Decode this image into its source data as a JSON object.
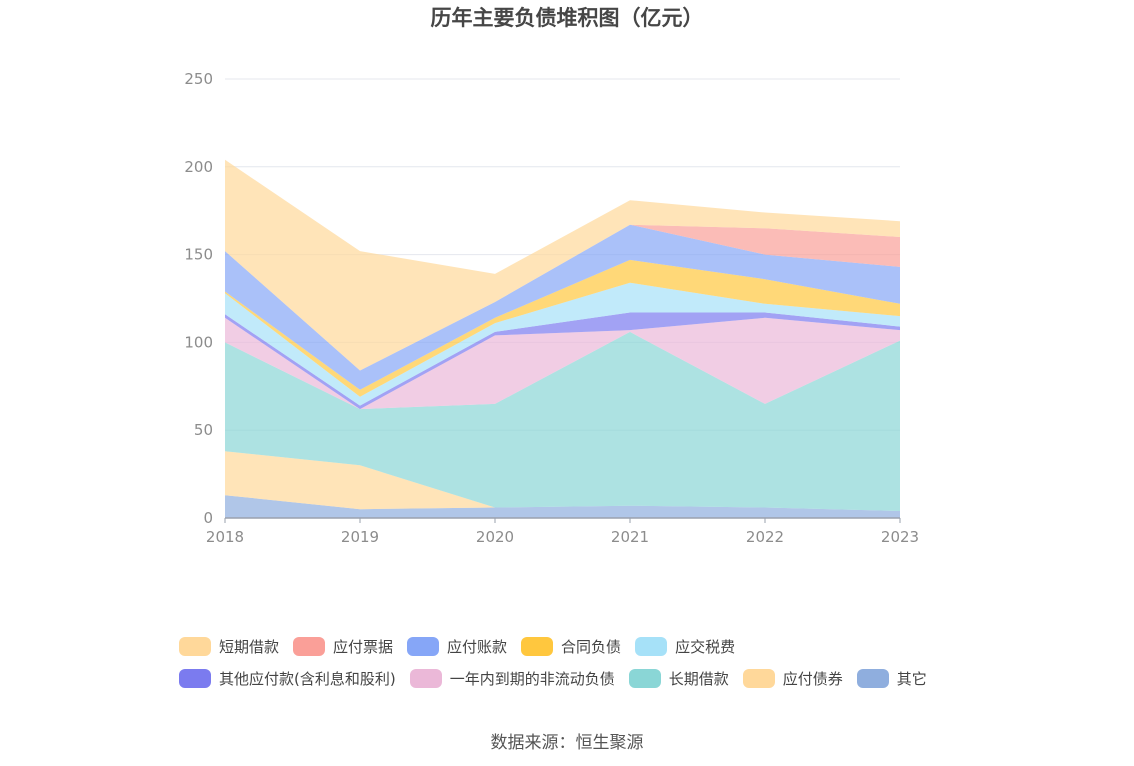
{
  "chart_data": {
    "type": "area",
    "stacked": true,
    "title": "历年主要负债堆积图（亿元）",
    "x": [
      "2018",
      "2019",
      "2020",
      "2021",
      "2022",
      "2023"
    ],
    "yticks": [
      "0",
      "50",
      "100",
      "150",
      "200",
      "250"
    ],
    "ylim": [
      0,
      250
    ],
    "grid": true,
    "legend_position": "bottom",
    "series": [
      {
        "name": "其它",
        "color": "#8faede",
        "values": [
          13,
          5,
          6,
          7,
          6,
          4
        ]
      },
      {
        "name": "应付债券",
        "color": "#ffd89a",
        "values": [
          25,
          25,
          0,
          0,
          0,
          0
        ]
      },
      {
        "name": "长期借款",
        "color": "#8ad6d6",
        "values": [
          62,
          32,
          59,
          99,
          59,
          97
        ]
      },
      {
        "name": "一年内到期的非流动负债",
        "color": "#ebb8d8",
        "values": [
          14,
          0,
          39,
          1,
          49,
          6
        ]
      },
      {
        "name": "其他应付款(含利息和股利)",
        "color": "#7b7bef",
        "values": [
          2,
          2,
          2,
          10,
          3,
          2
        ]
      },
      {
        "name": "应交税费",
        "color": "#a6e1f8",
        "values": [
          12,
          5,
          5,
          17,
          5,
          6
        ]
      },
      {
        "name": "合同负债",
        "color": "#ffc73e",
        "values": [
          1,
          4,
          3,
          13,
          14,
          7
        ]
      },
      {
        "name": "应付账款",
        "color": "#86a6f7",
        "values": [
          23,
          11,
          9,
          20,
          14,
          21
        ]
      },
      {
        "name": "应付票据",
        "color": "#fa9f98",
        "values": [
          0,
          0,
          0,
          0,
          15,
          17
        ]
      },
      {
        "name": "短期借款",
        "color": "#ffd89a",
        "values": [
          52,
          68,
          16,
          14,
          9,
          9
        ]
      }
    ]
  },
  "legend": {
    "row1": [
      {
        "label": "短期借款",
        "color": "#ffd89a"
      },
      {
        "label": "应付票据",
        "color": "#fa9f98"
      },
      {
        "label": "应付账款",
        "color": "#86a6f7"
      },
      {
        "label": "合同负债",
        "color": "#ffc73e"
      },
      {
        "label": "应交税费",
        "color": "#a6e1f8"
      }
    ],
    "row2": [
      {
        "label": "其他应付款(含利息和股利)",
        "color": "#7b7bef"
      },
      {
        "label": "一年内到期的非流动负债",
        "color": "#ebb8d8"
      },
      {
        "label": "长期借款",
        "color": "#8ad6d6"
      },
      {
        "label": "应付债券",
        "color": "#ffd89a"
      },
      {
        "label": "其它",
        "color": "#8faede"
      }
    ]
  },
  "source": "数据来源：恒生聚源"
}
